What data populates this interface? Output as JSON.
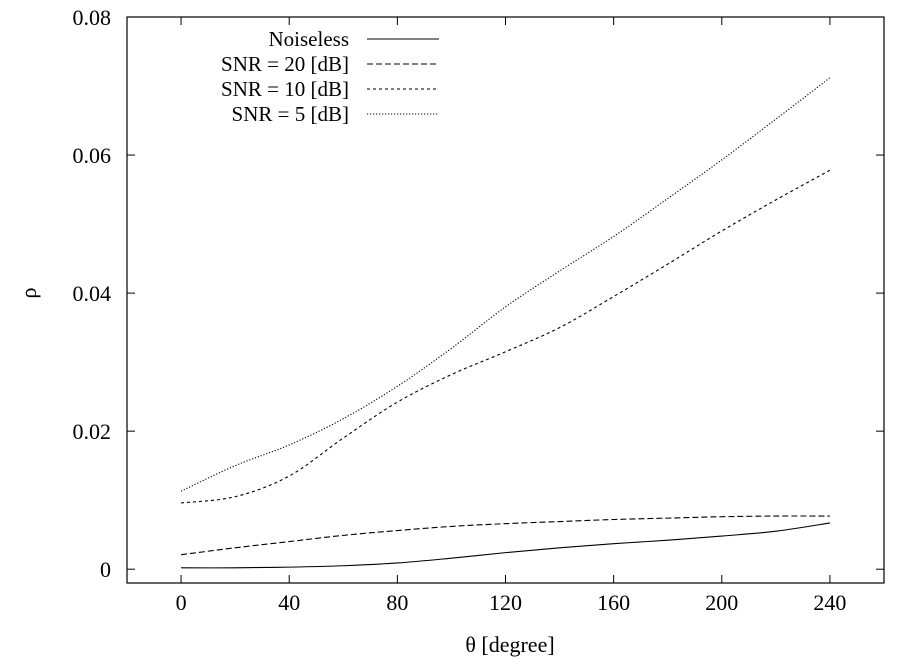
{
  "chart_data": {
    "type": "line",
    "title": "",
    "xlabel": "θ [degree]",
    "ylabel": "ρ",
    "xlim": [
      -20,
      260
    ],
    "ylim": [
      -0.002,
      0.08
    ],
    "xticks": [
      0,
      40,
      80,
      120,
      160,
      200,
      240
    ],
    "xtick_labels": [
      "0",
      "40",
      "80",
      "120",
      "160",
      "200",
      "240"
    ],
    "yticks": [
      0,
      0.02,
      0.04,
      0.06,
      0.08
    ],
    "ytick_labels": [
      "0",
      "0.02",
      "0.04",
      "0.06",
      "0.08"
    ],
    "grid": false,
    "legend_position": "top-left",
    "x": [
      0,
      20,
      40,
      60,
      80,
      100,
      120,
      140,
      160,
      180,
      200,
      220,
      240
    ],
    "series": [
      {
        "name": "Noiseless",
        "dash": "solid",
        "values": [
          0.0002,
          0.0002,
          0.0003,
          0.0005,
          0.0009,
          0.0016,
          0.0024,
          0.0031,
          0.0037,
          0.0042,
          0.0048,
          0.0055,
          0.0067
        ]
      },
      {
        "name": "SNR = 20 [dB]",
        "dash": "dashed",
        "values": [
          0.0021,
          0.0031,
          0.004,
          0.0049,
          0.0056,
          0.0062,
          0.0066,
          0.0069,
          0.0072,
          0.0074,
          0.0076,
          0.0077,
          0.0077
        ]
      },
      {
        "name": "SNR = 10 [dB]",
        "dash": "short-dashed",
        "values": [
          0.0096,
          0.0105,
          0.0135,
          0.019,
          0.0242,
          0.0282,
          0.0315,
          0.035,
          0.0395,
          0.0442,
          0.049,
          0.0535,
          0.0578
        ]
      },
      {
        "name": "SNR = 5 [dB]",
        "dash": "dotted",
        "values": [
          0.0113,
          0.015,
          0.018,
          0.0218,
          0.0265,
          0.032,
          0.038,
          0.0432,
          0.0482,
          0.0537,
          0.0593,
          0.0652,
          0.0712
        ]
      }
    ]
  }
}
